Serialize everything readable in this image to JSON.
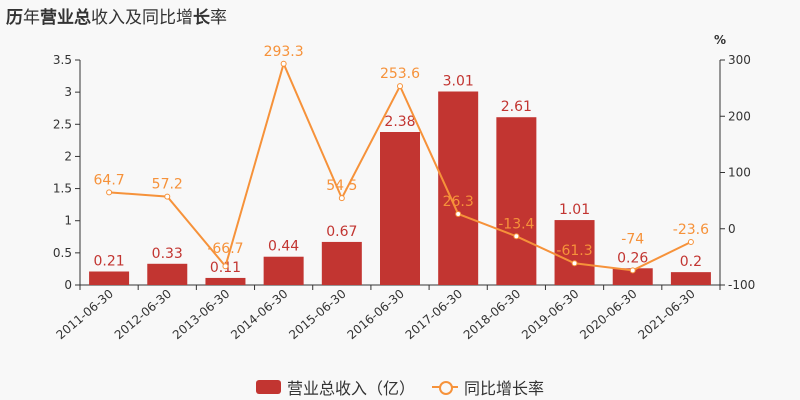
{
  "title": {
    "parts": [
      {
        "t": "历",
        "b": true
      },
      {
        "t": "年",
        "b": false
      },
      {
        "t": "营业总",
        "b": true
      },
      {
        "t": "收入及同比增",
        "b": false
      },
      {
        "t": "长",
        "b": true
      },
      {
        "t": "率",
        "b": false
      }
    ]
  },
  "chart_data": {
    "type": "bar+line",
    "categories": [
      "2011-06-30",
      "2012-06-30",
      "2013-06-30",
      "2014-06-30",
      "2015-06-30",
      "2016-06-30",
      "2017-06-30",
      "2018-06-30",
      "2019-06-30",
      "2020-06-30",
      "2021-06-30"
    ],
    "series": [
      {
        "name": "营业总收入（亿）",
        "type": "bar",
        "axis": "left",
        "color": "#c23531",
        "values": [
          0.21,
          0.33,
          0.11,
          0.44,
          0.67,
          2.38,
          3.01,
          2.61,
          1.01,
          0.26,
          0.2
        ]
      },
      {
        "name": "同比增长率",
        "type": "line",
        "axis": "right",
        "color": "#f6923a",
        "values": [
          64.7,
          57.2,
          -66.7,
          293.3,
          54.5,
          253.6,
          26.3,
          -13.4,
          -61.3,
          -74,
          -23.6
        ]
      }
    ],
    "left_axis": {
      "ylim": [
        0,
        3.5
      ],
      "ticks": [
        "0",
        "0.5",
        "1",
        "1.5",
        "2",
        "2.5",
        "3",
        "3.5"
      ]
    },
    "right_axis": {
      "label": "%",
      "ylim": [
        -100,
        300
      ],
      "ticks": [
        "-100",
        "0",
        "100",
        "200",
        "300"
      ]
    },
    "legend": "bottom"
  }
}
